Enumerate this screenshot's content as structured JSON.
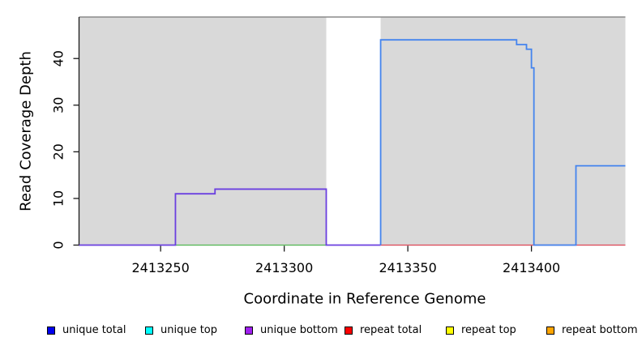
{
  "axes": {
    "y_label": "Read Coverage Depth",
    "x_label": "Coordinate in Reference Genome",
    "y_ticks": [
      0,
      10,
      20,
      30,
      40
    ],
    "x_ticks": [
      2413250,
      2413300,
      2413350,
      2413400
    ]
  },
  "legend": {
    "swatch_border": "#000000",
    "items": [
      {
        "label": "unique total",
        "color": "#0000ee"
      },
      {
        "label": "unique top",
        "color": "#00ffff"
      },
      {
        "label": "unique bottom",
        "color": "#a020f0"
      },
      {
        "label": "repeat total",
        "color": "#ff0000"
      },
      {
        "label": "repeat top",
        "color": "#ffff00"
      },
      {
        "label": "repeat bottom",
        "color": "#ffa500"
      }
    ]
  },
  "chart_data": {
    "type": "line",
    "title": "",
    "xlabel": "Coordinate in Reference Genome",
    "ylabel": "Read Coverage Depth",
    "xlim": [
      2413217,
      2413438
    ],
    "ylim": [
      0,
      48.9
    ],
    "x_ticks": [
      2413250,
      2413300,
      2413350,
      2413400
    ],
    "y_ticks": [
      0,
      10,
      20,
      30,
      40
    ],
    "grid": false,
    "legend_position": "bottom",
    "plot_bg": "#ffffff",
    "axis_color": "#1a1a1a",
    "top_rule_color": "#8a8a8a",
    "shaded_regions": [
      {
        "name": "covered-region-1",
        "x_start": 2413217,
        "x_end": 2413317,
        "color": "#d9d9d9"
      },
      {
        "name": "covered-region-2",
        "x_start": 2413339,
        "x_end": 2413438,
        "color": "#d9d9d9"
      }
    ],
    "series": [
      {
        "name": "baseline-green",
        "legend": null,
        "color": "#53b953",
        "width": 1.3,
        "points": [
          [
            2413256,
            0
          ],
          [
            2413317,
            0
          ]
        ]
      },
      {
        "name": "unique-bottom",
        "legend": "unique bottom",
        "color": "#6b40e0",
        "width": 1.8,
        "points": [
          [
            2413217,
            0
          ],
          [
            2413256,
            0
          ],
          [
            2413256,
            11
          ],
          [
            2413272,
            11
          ],
          [
            2413272,
            12
          ],
          [
            2413317,
            12
          ],
          [
            2413317,
            0
          ],
          [
            2413339,
            0
          ]
        ]
      },
      {
        "name": "repeat-total",
        "legend": "repeat total",
        "color": "#e04858",
        "width": 1.3,
        "points": [
          [
            2413339,
            0
          ],
          [
            2413438,
            0
          ]
        ]
      },
      {
        "name": "unique-total",
        "legend": "unique total",
        "color": "#4484ee",
        "width": 1.8,
        "points": [
          [
            2413339,
            0
          ],
          [
            2413339,
            44
          ],
          [
            2413394,
            44
          ],
          [
            2413394,
            43
          ],
          [
            2413398,
            43
          ],
          [
            2413398,
            42
          ],
          [
            2413400,
            42
          ],
          [
            2413400,
            38
          ],
          [
            2413401,
            38
          ],
          [
            2413401,
            0
          ],
          [
            2413418,
            0
          ],
          [
            2413418,
            17
          ],
          [
            2413438,
            17
          ]
        ]
      }
    ]
  }
}
